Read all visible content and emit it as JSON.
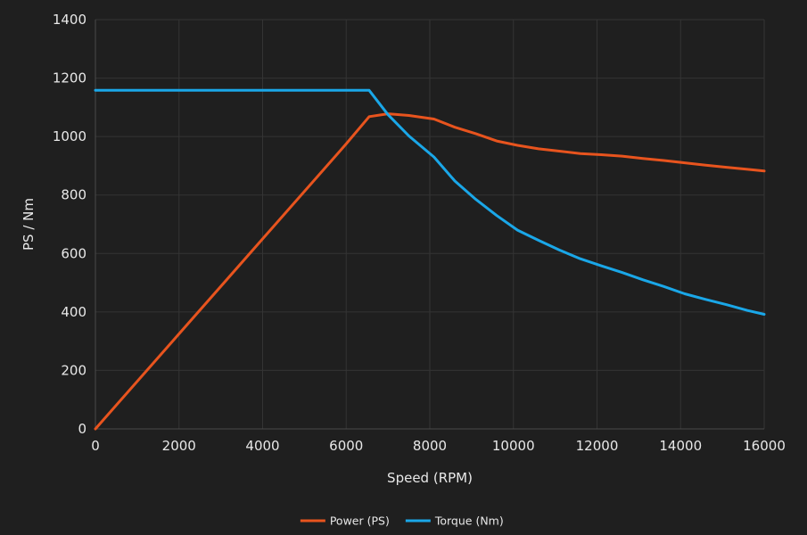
{
  "chart_data": {
    "type": "line",
    "xlabel": "Speed (RPM)",
    "ylabel": "PS / Nm",
    "xlim": [
      0,
      16000
    ],
    "ylim": [
      0,
      1400
    ],
    "x_ticks": [
      0,
      2000,
      4000,
      6000,
      8000,
      10000,
      12000,
      14000,
      16000
    ],
    "y_ticks": [
      0,
      200,
      400,
      600,
      800,
      1000,
      1200,
      1400
    ],
    "grid": true,
    "legend_position": "bottom-center",
    "series": [
      {
        "name": "Power (PS)",
        "color": "#e8541e",
        "points": [
          [
            0,
            0
          ],
          [
            2000,
            325
          ],
          [
            4000,
            650
          ],
          [
            6000,
            975
          ],
          [
            6550,
            1068
          ],
          [
            7000,
            1078
          ],
          [
            7500,
            1072
          ],
          [
            8100,
            1060
          ],
          [
            8600,
            1032
          ],
          [
            9100,
            1010
          ],
          [
            9600,
            985
          ],
          [
            10100,
            970
          ],
          [
            10600,
            958
          ],
          [
            11100,
            950
          ],
          [
            11600,
            942
          ],
          [
            12100,
            938
          ],
          [
            12600,
            933
          ],
          [
            13100,
            925
          ],
          [
            13600,
            918
          ],
          [
            14100,
            910
          ],
          [
            14600,
            902
          ],
          [
            15100,
            895
          ],
          [
            15600,
            888
          ],
          [
            16000,
            882
          ]
        ]
      },
      {
        "name": "Torque (Nm)",
        "color": "#1aa7e8",
        "points": [
          [
            0,
            1158
          ],
          [
            2000,
            1158
          ],
          [
            4000,
            1158
          ],
          [
            6000,
            1158
          ],
          [
            6550,
            1158
          ],
          [
            7000,
            1075
          ],
          [
            7500,
            1002
          ],
          [
            8100,
            930
          ],
          [
            8600,
            848
          ],
          [
            9100,
            785
          ],
          [
            9600,
            730
          ],
          [
            10100,
            680
          ],
          [
            10600,
            645
          ],
          [
            11100,
            612
          ],
          [
            11600,
            582
          ],
          [
            12100,
            558
          ],
          [
            12600,
            535
          ],
          [
            13100,
            510
          ],
          [
            13600,
            487
          ],
          [
            14100,
            462
          ],
          [
            14600,
            443
          ],
          [
            15100,
            425
          ],
          [
            15600,
            405
          ],
          [
            16000,
            392
          ]
        ]
      }
    ]
  }
}
